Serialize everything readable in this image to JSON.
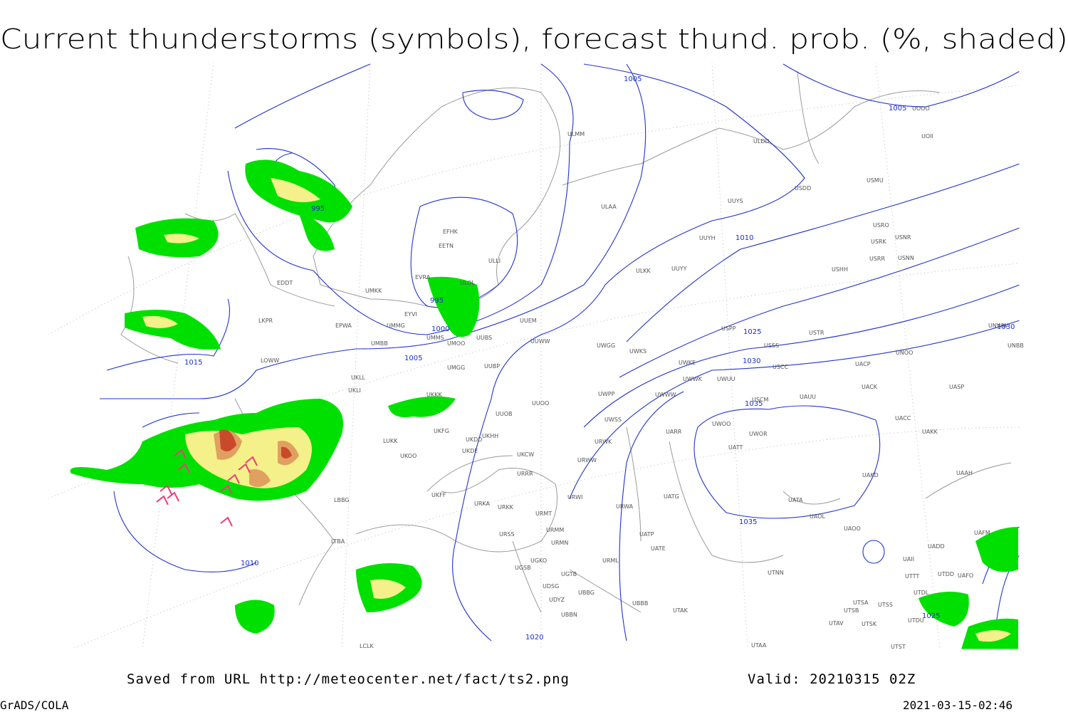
{
  "title": "Current thunderstorms (symbols), forecast thund. prob. (%, shaded)",
  "footer": {
    "source": "Saved from URL http://meteocenter.net/fact/ts2.png",
    "valid": "Valid: 20210315 02Z",
    "software": "GrADS/COLA",
    "timestamp": "2021-03-15-02:46"
  },
  "map": {
    "isobar_labels": [
      "1005",
      "1005",
      "995",
      "995",
      "1000",
      "1005",
      "1015",
      "1010",
      "1025",
      "1030",
      "1030",
      "1035",
      "1035",
      "1010",
      "1025",
      "1020"
    ],
    "stations": [
      "ULMM",
      "ULDD",
      "USDD",
      "USMU",
      "UOOO",
      "UOII",
      "ULAA",
      "UUYS",
      "USRO",
      "USRK",
      "USNR",
      "USRR",
      "USNN",
      "USHH",
      "UUYH",
      "ULKK",
      "UUYY",
      "EFHK",
      "EETN",
      "ULLI",
      "EVRA",
      "ULOL",
      "UMKK",
      "EDDT",
      "EYVI",
      "UMMG",
      "UMMS",
      "UMOO",
      "UUBS",
      "LKPR",
      "EPWA",
      "UMBB",
      "UUEM",
      "UUWW",
      "UWGG",
      "UWKS",
      "USPP",
      "USSS",
      "USTR",
      "UNOO",
      "UNBB",
      "UNWW",
      "LOWW",
      "UKLL",
      "UKLI",
      "UMGG",
      "UUBP",
      "UWKE",
      "UWWK",
      "UWUU",
      "USCC",
      "UACP",
      "UACK",
      "UASP",
      "UKKK",
      "UUOO",
      "UWPP",
      "UWWW",
      "USCM",
      "UAUU",
      "UUOB",
      "UWSS",
      "UACC",
      "UAKK",
      "LUKK",
      "UKHH",
      "UKDD",
      "UKFG",
      "UWOO",
      "UWOR",
      "UARR",
      "UKOO",
      "UKDE",
      "UKCW",
      "URWW",
      "URWK",
      "UATT",
      "URRR",
      "UAKD",
      "UAAH",
      "URWI",
      "UATG",
      "UATA",
      "UKFF",
      "URKA",
      "URKK",
      "LBBG",
      "UAOL",
      "URMT",
      "URWA",
      "UAOO",
      "URMM",
      "URSS",
      "UATP",
      "UATE",
      "URMN",
      "UGKO",
      "UGSB",
      "UGTB",
      "URML",
      "UAII",
      "UADD",
      "UAFM",
      "UTNN",
      "UTTT",
      "UTDL",
      "UTDD",
      "UAFO",
      "UDSG",
      "UDYZ",
      "UBBG",
      "UBBB",
      "UBBN",
      "UTAK",
      "UTSA",
      "UTSB",
      "UTSS",
      "UTAV",
      "UTSK",
      "UTDU",
      "LTBA",
      "LCLK",
      "UTAA",
      "UTST"
    ]
  }
}
